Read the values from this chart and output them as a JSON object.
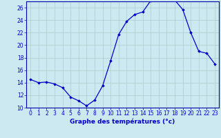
{
  "hours": [
    0,
    1,
    2,
    3,
    4,
    5,
    6,
    7,
    8,
    9,
    10,
    11,
    12,
    13,
    14,
    15,
    16,
    17,
    18,
    19,
    20,
    21,
    22,
    23
  ],
  "temps": [
    14.5,
    14.0,
    14.1,
    13.8,
    13.2,
    11.7,
    11.1,
    10.3,
    11.2,
    13.5,
    17.5,
    21.7,
    23.8,
    24.9,
    25.3,
    27.1,
    27.3,
    27.2,
    27.2,
    25.7,
    22.0,
    19.0,
    18.7,
    17.0
  ],
  "line_color": "#0000cc",
  "marker": "D",
  "marker_size": 1.8,
  "bg_color": "#cce8f0",
  "grid_color": "#aacccc",
  "xlabel": "Graphe des températures (°c)",
  "ylim": [
    10,
    27
  ],
  "xlim_min": -0.5,
  "xlim_max": 23.5,
  "yticks": [
    10,
    12,
    14,
    16,
    18,
    20,
    22,
    24,
    26
  ],
  "xticks": [
    0,
    1,
    2,
    3,
    4,
    5,
    6,
    7,
    8,
    9,
    10,
    11,
    12,
    13,
    14,
    15,
    16,
    17,
    18,
    19,
    20,
    21,
    22,
    23
  ],
  "tick_label_fontsize": 5.5,
  "xlabel_fontsize": 6.5,
  "axis_color": "#0000aa",
  "tick_color": "#0000cc",
  "linewidth": 0.9
}
